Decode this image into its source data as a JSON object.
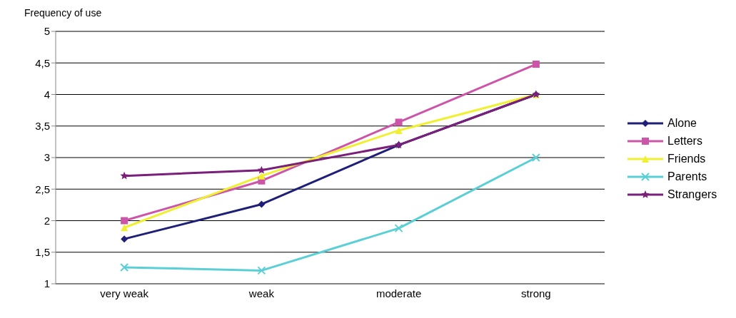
{
  "chart_data": {
    "type": "line",
    "ylabel": "Frequency of use",
    "categories": [
      "very weak",
      "weak",
      "moderate",
      "strong"
    ],
    "series": [
      {
        "name": "Alone",
        "color": "#1f1f78",
        "marker": "diamond",
        "values": [
          1.71,
          2.26,
          3.2,
          4.0
        ]
      },
      {
        "name": "Letters",
        "color": "#cc55aa",
        "marker": "square",
        "values": [
          2.0,
          2.63,
          3.56,
          4.48
        ]
      },
      {
        "name": "Friends",
        "color": "#f0f032",
        "marker": "triangle",
        "values": [
          1.89,
          2.71,
          3.43,
          4.0
        ]
      },
      {
        "name": "Parents",
        "color": "#5acfd6",
        "marker": "cross",
        "values": [
          1.26,
          1.21,
          1.88,
          3.0
        ]
      },
      {
        "name": "Strangers",
        "color": "#7a1f7a",
        "marker": "star",
        "values": [
          2.71,
          2.8,
          3.2,
          4.0
        ]
      }
    ],
    "ylim": [
      1,
      5
    ],
    "yticks": [
      1,
      {
        "value": 1.5,
        "label": "1,5"
      },
      2,
      {
        "value": 2.5,
        "label": "2,5"
      },
      3,
      {
        "value": 3.5,
        "label": "3,5"
      },
      4,
      {
        "value": 4.5,
        "label": "4,5"
      },
      5
    ],
    "grid": "y",
    "legend": "right"
  }
}
